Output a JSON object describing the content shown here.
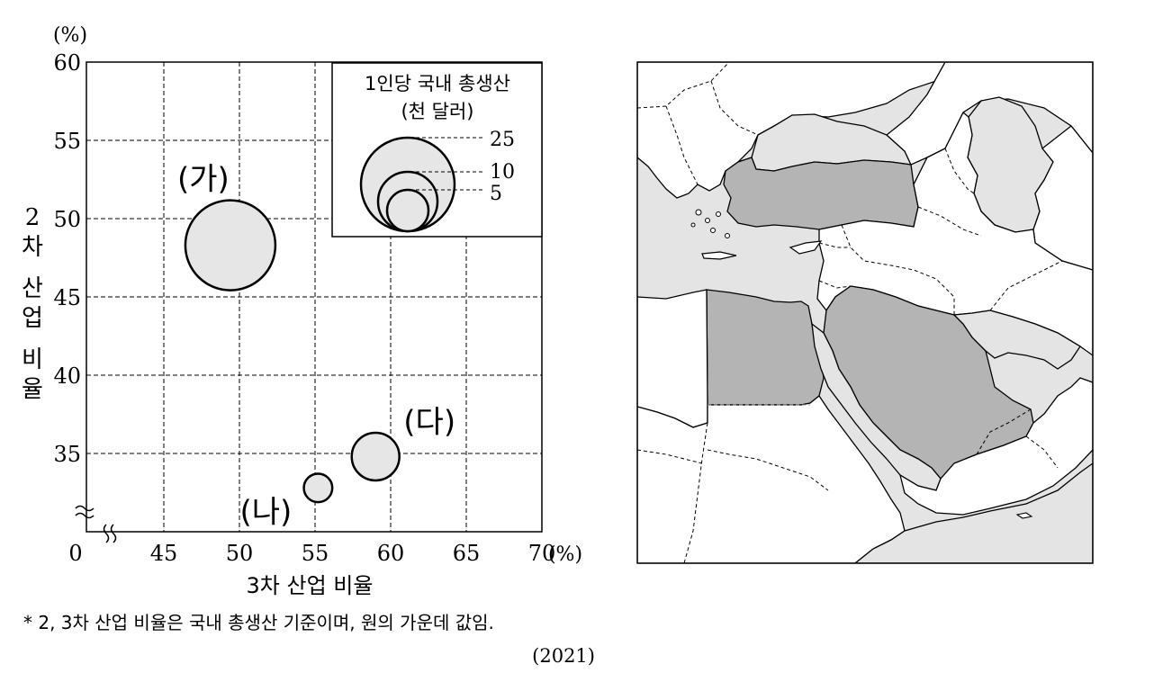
{
  "chart_data": {
    "type": "scatter",
    "subtype": "bubble",
    "xlabel": "3차 산업 비율",
    "xunit": "(%)",
    "ylabel": "2 차 산업 비율",
    "yunit": "(%)",
    "x_ticks": [
      "0",
      "45",
      "50",
      "55",
      "60",
      "65",
      "70"
    ],
    "y_ticks": [
      "35",
      "40",
      "45",
      "50",
      "55",
      "60"
    ],
    "xlim": [
      42,
      70
    ],
    "ylim": [
      30,
      60
    ],
    "axis_break": true,
    "grid": true,
    "points": [
      {
        "label": "(가)",
        "x": 49.4,
        "y": 48.3,
        "gdp_per_capita": 25
      },
      {
        "label": "(나)",
        "x": 55.2,
        "y": 32.8,
        "gdp_per_capita": 2.5
      },
      {
        "label": "(다)",
        "x": 59.0,
        "y": 34.8,
        "gdp_per_capita": 7
      }
    ],
    "size_legend": {
      "title_line1": "1인당 국내 총생산",
      "title_line2": "(천 달러)",
      "entries": [
        "25",
        "10",
        "5"
      ],
      "values": [
        25,
        10,
        5
      ]
    },
    "footnote": "* 2, 3차 산업 비율은 국내 총생산 기준이며, 원의 가운데 값임.",
    "year": "(2021)"
  },
  "colors": {
    "bubble_fill": "#e6e6e6",
    "map_sea": "#e4e4e4",
    "map_highlight": "#b4b4b4",
    "map_land": "#ffffff",
    "stroke": "#000000"
  },
  "map": {
    "highlighted_countries": [
      "turkey",
      "egypt",
      "saudi-arabia"
    ]
  }
}
